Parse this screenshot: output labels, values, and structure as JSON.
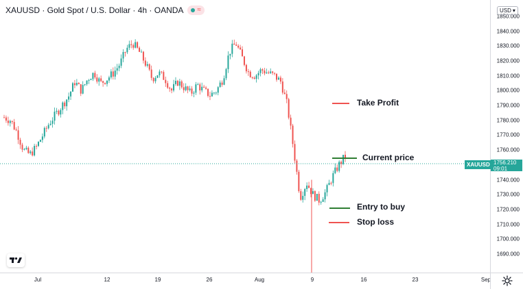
{
  "header": {
    "title": "XAUUSD · Gold Spot / U.S. Dollar · 4h · OANDA",
    "status_icon": "market-open-dot",
    "wave_icon": "≈"
  },
  "price_axis": {
    "currency": "USD",
    "ticks": [
      "1850.000",
      "1840.000",
      "1830.000",
      "1820.000",
      "1810.000",
      "1800.000",
      "1790.000",
      "1780.000",
      "1770.000",
      "1760.000",
      "1740.000",
      "1730.000",
      "1720.000",
      "1710.000",
      "1700.000",
      "1690.000"
    ],
    "current_symbol": "XAUUSD",
    "current_price": "1756.210",
    "countdown": "09:01"
  },
  "time_axis": {
    "ticks": [
      "Jul",
      "12",
      "19",
      "26",
      "Aug",
      "9",
      "16",
      "23",
      "Sep"
    ]
  },
  "annotations": {
    "take_profit": "Take Profit",
    "current_price": "Current price",
    "entry": "Entry to buy",
    "stop_loss": "Stop loss"
  },
  "colors": {
    "up": "#26a69a",
    "down": "#ef5350",
    "accent": "#26a69a"
  },
  "chart_data": {
    "type": "candlestick",
    "symbol": "XAUUSD",
    "ylim": [
      1685,
      1860
    ],
    "close_path": [
      1782,
      1780,
      1772,
      1760,
      1757,
      1762,
      1770,
      1778,
      1784,
      1790,
      1796,
      1806,
      1800,
      1808,
      1812,
      1805,
      1808,
      1812,
      1818,
      1828,
      1832,
      1826,
      1818,
      1808,
      1812,
      1808,
      1800,
      1806,
      1802,
      1798,
      1804,
      1800,
      1797,
      1800,
      1808,
      1826,
      1832,
      1822,
      1812,
      1810,
      1814,
      1812,
      1810,
      1806,
      1790,
      1760,
      1728,
      1738,
      1730,
      1726,
      1732,
      1742,
      1750,
      1756
    ]
  }
}
